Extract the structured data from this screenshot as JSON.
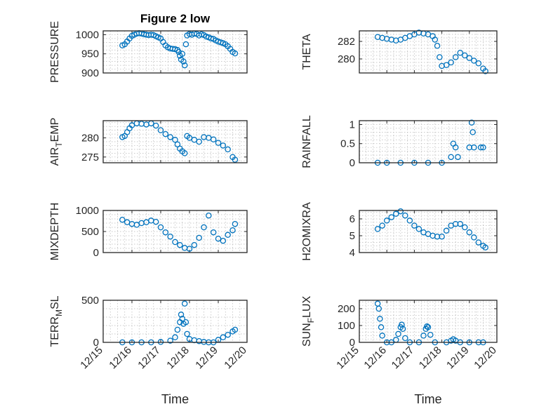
{
  "figure": {
    "title": "Figure 2 low",
    "background": "#ffffff",
    "marker_color": "#0072bd",
    "xlabel": "Time"
  },
  "chart_data": [
    {
      "type": "scatter",
      "title": "Figure 2 low",
      "ylabel": "PRESSURE",
      "ylabel_sub": "",
      "xlim": [
        "12/15",
        "12/20"
      ],
      "ylim": [
        900,
        1010
      ],
      "yticks": [
        900,
        950,
        1000
      ],
      "ytick_labels": [
        "900",
        "950",
        "1000"
      ],
      "xticks": [
        "12/15",
        "12/16",
        "12/17",
        "12/18",
        "12/19",
        "12/20"
      ],
      "show_xtick_labels": false,
      "grid": true,
      "marker": "circle",
      "points": [
        [
          "12/15 16:00",
          972
        ],
        [
          "12/15 18:00",
          975
        ],
        [
          "12/15 20:00",
          982
        ],
        [
          "12/15 22:00",
          990
        ],
        [
          "12/16 00:00",
          997
        ],
        [
          "12/16 02:00",
          1000
        ],
        [
          "12/16 04:00",
          1003
        ],
        [
          "12/16 06:00",
          1004
        ],
        [
          "12/16 08:00",
          1003
        ],
        [
          "12/16 10:00",
          1001
        ],
        [
          "12/16 12:00",
          1000
        ],
        [
          "12/16 14:00",
          999
        ],
        [
          "12/16 16:00",
          1000
        ],
        [
          "12/16 18:00",
          999
        ],
        [
          "12/16 20:00",
          996
        ],
        [
          "12/16 22:00",
          993
        ],
        [
          "12/17 00:00",
          990
        ],
        [
          "12/17 02:00",
          981
        ],
        [
          "12/17 04:00",
          972
        ],
        [
          "12/17 06:00",
          967
        ],
        [
          "12/17 08:00",
          964
        ],
        [
          "12/17 10:00",
          963
        ],
        [
          "12/17 12:00",
          962
        ],
        [
          "12/17 14:00",
          960
        ],
        [
          "12/17 15:00",
          955
        ],
        [
          "12/17 16:00",
          945
        ],
        [
          "12/17 17:00",
          935
        ],
        [
          "12/17 18:00",
          950
        ],
        [
          "12/17 19:00",
          930
        ],
        [
          "12/17 20:00",
          920
        ],
        [
          "12/17 21:00",
          975
        ],
        [
          "12/17 22:00",
          998
        ],
        [
          "12/18 00:00",
          1002
        ],
        [
          "12/18 02:00",
          1000
        ],
        [
          "12/18 04:00",
          1003
        ],
        [
          "12/18 06:00",
          1002
        ],
        [
          "12/18 08:00",
          998
        ],
        [
          "12/18 10:00",
          1001
        ],
        [
          "12/18 12:00",
          999
        ],
        [
          "12/18 14:00",
          995
        ],
        [
          "12/18 16:00",
          993
        ],
        [
          "12/18 18:00",
          990
        ],
        [
          "12/18 20:00",
          989
        ],
        [
          "12/18 22:00",
          985
        ],
        [
          "12/19 00:00",
          982
        ],
        [
          "12/19 02:00",
          980
        ],
        [
          "12/19 04:00",
          978
        ],
        [
          "12/19 06:00",
          975
        ],
        [
          "12/19 08:00",
          970
        ],
        [
          "12/19 10:00",
          963
        ],
        [
          "12/19 12:00",
          955
        ],
        [
          "12/19 14:00",
          951
        ]
      ]
    },
    {
      "type": "scatter",
      "title": "",
      "ylabel": "THETA",
      "ylabel_sub": "",
      "xlim": [
        "12/15",
        "12/20"
      ],
      "ylim": [
        278.4,
        283.2
      ],
      "yticks": [
        280,
        282
      ],
      "ytick_labels": [
        "280",
        "282"
      ],
      "xticks": [
        "12/15",
        "12/16",
        "12/17",
        "12/18",
        "12/19",
        "12/20"
      ],
      "show_xtick_labels": false,
      "grid": true,
      "marker": "circle",
      "points": [
        [
          "12/15 16:00",
          282.5
        ],
        [
          "12/15 20:00",
          282.4
        ],
        [
          "12/16 00:00",
          282.3
        ],
        [
          "12/16 04:00",
          282.2
        ],
        [
          "12/16 08:00",
          282.1
        ],
        [
          "12/16 12:00",
          282.2
        ],
        [
          "12/16 16:00",
          282.4
        ],
        [
          "12/16 20:00",
          282.6
        ],
        [
          "12/17 00:00",
          282.8
        ],
        [
          "12/17 04:00",
          283.0
        ],
        [
          "12/17 08:00",
          282.9
        ],
        [
          "12/17 12:00",
          282.8
        ],
        [
          "12/17 16:00",
          282.6
        ],
        [
          "12/17 18:00",
          282.2
        ],
        [
          "12/17 20:00",
          281.5
        ],
        [
          "12/17 22:00",
          280.2
        ],
        [
          "12/18 00:00",
          279.2
        ],
        [
          "12/18 04:00",
          279.3
        ],
        [
          "12/18 08:00",
          279.6
        ],
        [
          "12/18 12:00",
          280.2
        ],
        [
          "12/18 16:00",
          280.7
        ],
        [
          "12/18 20:00",
          280.4
        ],
        [
          "12/19 00:00",
          280.1
        ],
        [
          "12/19 04:00",
          279.8
        ],
        [
          "12/19 08:00",
          279.5
        ],
        [
          "12/19 12:00",
          278.9
        ],
        [
          "12/19 14:00",
          278.6
        ]
      ]
    },
    {
      "type": "scatter",
      "title": "",
      "ylabel": "AIR",
      "ylabel_sub": "T",
      "ylabel_rest": "EMP",
      "xlim": [
        "12/15",
        "12/20"
      ],
      "ylim": [
        273.5,
        284.5
      ],
      "yticks": [
        275,
        280
      ],
      "ytick_labels": [
        "275",
        "280"
      ],
      "xticks": [
        "12/15",
        "12/16",
        "12/17",
        "12/18",
        "12/19",
        "12/20"
      ],
      "show_xtick_labels": false,
      "grid": true,
      "marker": "circle",
      "points": [
        [
          "12/15 16:00",
          280.2
        ],
        [
          "12/15 18:00",
          280.5
        ],
        [
          "12/15 20:00",
          281.5
        ],
        [
          "12/15 22:00",
          282.5
        ],
        [
          "12/16 00:00",
          283.3
        ],
        [
          "12/16 04:00",
          283.8
        ],
        [
          "12/16 08:00",
          283.7
        ],
        [
          "12/16 12:00",
          283.5
        ],
        [
          "12/16 16:00",
          283.8
        ],
        [
          "12/16 20:00",
          283.2
        ],
        [
          "12/17 00:00",
          282.0
        ],
        [
          "12/17 04:00",
          281.0
        ],
        [
          "12/17 08:00",
          280.2
        ],
        [
          "12/17 12:00",
          279.5
        ],
        [
          "12/17 14:00",
          278.3
        ],
        [
          "12/17 16:00",
          277.2
        ],
        [
          "12/17 18:00",
          276.5
        ],
        [
          "12/17 20:00",
          276.0
        ],
        [
          "12/17 22:00",
          280.5
        ],
        [
          "12/18 00:00",
          280.0
        ],
        [
          "12/18 04:00",
          279.5
        ],
        [
          "12/18 08:00",
          279.0
        ],
        [
          "12/18 12:00",
          280.2
        ],
        [
          "12/18 16:00",
          280.0
        ],
        [
          "12/18 20:00",
          279.6
        ],
        [
          "12/19 00:00",
          278.7
        ],
        [
          "12/19 04:00",
          278.0
        ],
        [
          "12/19 08:00",
          277.0
        ],
        [
          "12/19 12:00",
          275.0
        ],
        [
          "12/19 14:00",
          274.3
        ]
      ]
    },
    {
      "type": "scatter",
      "title": "",
      "ylabel": "RAINFALL",
      "ylabel_sub": "",
      "xlim": [
        "12/15",
        "12/20"
      ],
      "ylim": [
        0,
        1.1
      ],
      "yticks": [
        0,
        0.5,
        1
      ],
      "ytick_labels": [
        "0",
        "0.5",
        "1"
      ],
      "xticks": [
        "12/15",
        "12/16",
        "12/17",
        "12/18",
        "12/19",
        "12/20"
      ],
      "show_xtick_labels": false,
      "grid": true,
      "marker": "circle",
      "points": [
        [
          "12/15 16:00",
          0
        ],
        [
          "12/16 00:00",
          0
        ],
        [
          "12/16 12:00",
          0
        ],
        [
          "12/17 00:00",
          0
        ],
        [
          "12/17 12:00",
          0
        ],
        [
          "12/18 00:00",
          0
        ],
        [
          "12/18 08:00",
          0.15
        ],
        [
          "12/18 10:00",
          0.5
        ],
        [
          "12/18 12:00",
          0.4
        ],
        [
          "12/18 14:00",
          0.15
        ],
        [
          "12/19 00:00",
          0.4
        ],
        [
          "12/19 02:00",
          1.05
        ],
        [
          "12/19 03:00",
          0.8
        ],
        [
          "12/19 04:00",
          0.4
        ],
        [
          "12/19 10:00",
          0.4
        ],
        [
          "12/19 12:00",
          0.4
        ]
      ]
    },
    {
      "type": "scatter",
      "title": "",
      "ylabel": "MIXDEPTH",
      "ylabel_sub": "",
      "xlim": [
        "12/15",
        "12/20"
      ],
      "ylim": [
        0,
        1000
      ],
      "yticks": [
        0,
        500,
        1000
      ],
      "ytick_labels": [
        "0",
        "500",
        "1000"
      ],
      "xticks": [
        "12/15",
        "12/16",
        "12/17",
        "12/18",
        "12/19",
        "12/20"
      ],
      "show_xtick_labels": false,
      "grid": true,
      "marker": "circle",
      "points": [
        [
          "12/15 16:00",
          780
        ],
        [
          "12/15 20:00",
          720
        ],
        [
          "12/16 00:00",
          680
        ],
        [
          "12/16 04:00",
          660
        ],
        [
          "12/16 08:00",
          700
        ],
        [
          "12/16 12:00",
          720
        ],
        [
          "12/16 16:00",
          760
        ],
        [
          "12/16 20:00",
          730
        ],
        [
          "12/17 00:00",
          600
        ],
        [
          "12/17 04:00",
          480
        ],
        [
          "12/17 08:00",
          380
        ],
        [
          "12/17 12:00",
          250
        ],
        [
          "12/17 16:00",
          180
        ],
        [
          "12/17 20:00",
          110
        ],
        [
          "12/18 00:00",
          90
        ],
        [
          "12/18 04:00",
          180
        ],
        [
          "12/18 08:00",
          350
        ],
        [
          "12/18 12:00",
          600
        ],
        [
          "12/18 16:00",
          880
        ],
        [
          "12/18 20:00",
          480
        ],
        [
          "12/19 00:00",
          330
        ],
        [
          "12/19 04:00",
          280
        ],
        [
          "12/19 08:00",
          420
        ],
        [
          "12/19 12:00",
          530
        ],
        [
          "12/19 14:00",
          680
        ]
      ]
    },
    {
      "type": "scatter",
      "title": "",
      "ylabel": "H2OMIXRA",
      "ylabel_sub": "",
      "xlim": [
        "12/15",
        "12/20"
      ],
      "ylim": [
        4,
        6.5
      ],
      "yticks": [
        4,
        5,
        6
      ],
      "ytick_labels": [
        "4",
        "5",
        "6"
      ],
      "xticks": [
        "12/15",
        "12/16",
        "12/17",
        "12/18",
        "12/19",
        "12/20"
      ],
      "show_xtick_labels": false,
      "grid": true,
      "marker": "circle",
      "points": [
        [
          "12/15 16:00",
          5.4
        ],
        [
          "12/15 20:00",
          5.6
        ],
        [
          "12/16 00:00",
          5.9
        ],
        [
          "12/16 04:00",
          6.1
        ],
        [
          "12/16 08:00",
          6.3
        ],
        [
          "12/16 12:00",
          6.45
        ],
        [
          "12/16 16:00",
          6.2
        ],
        [
          "12/16 20:00",
          5.9
        ],
        [
          "12/17 00:00",
          5.6
        ],
        [
          "12/17 04:00",
          5.4
        ],
        [
          "12/17 08:00",
          5.2
        ],
        [
          "12/17 12:00",
          5.1
        ],
        [
          "12/17 16:00",
          5.0
        ],
        [
          "12/17 20:00",
          4.95
        ],
        [
          "12/18 00:00",
          4.95
        ],
        [
          "12/18 04:00",
          5.3
        ],
        [
          "12/18 08:00",
          5.6
        ],
        [
          "12/18 12:00",
          5.7
        ],
        [
          "12/18 16:00",
          5.7
        ],
        [
          "12/18 20:00",
          5.5
        ],
        [
          "12/19 00:00",
          5.2
        ],
        [
          "12/19 04:00",
          4.9
        ],
        [
          "12/19 08:00",
          4.6
        ],
        [
          "12/19 12:00",
          4.4
        ],
        [
          "12/19 14:00",
          4.3
        ]
      ]
    },
    {
      "type": "scatter",
      "title": "",
      "ylabel": "TERR",
      "ylabel_sub": "M",
      "ylabel_rest": "SL",
      "xlim": [
        "12/15",
        "12/20"
      ],
      "ylim": [
        0,
        500
      ],
      "yticks": [
        0,
        500
      ],
      "ytick_labels": [
        "0",
        "500"
      ],
      "xticks": [
        "12/15",
        "12/16",
        "12/17",
        "12/18",
        "12/19",
        "12/20"
      ],
      "xtick_labels": [
        "12/15",
        "12/16",
        "12/17",
        "12/18",
        "12/19",
        "12/20"
      ],
      "show_xtick_labels": true,
      "grid": true,
      "marker": "circle",
      "xlabel": "Time",
      "points": [
        [
          "12/15 16:00",
          0
        ],
        [
          "12/16 00:00",
          0
        ],
        [
          "12/16 08:00",
          0
        ],
        [
          "12/16 16:00",
          0
        ],
        [
          "12/17 00:00",
          5
        ],
        [
          "12/17 08:00",
          20
        ],
        [
          "12/17 12:00",
          60
        ],
        [
          "12/17 14:00",
          150
        ],
        [
          "12/17 16:00",
          240
        ],
        [
          "12/17 17:00",
          330
        ],
        [
          "12/17 18:00",
          280
        ],
        [
          "12/17 19:00",
          220
        ],
        [
          "12/17 20:00",
          460
        ],
        [
          "12/17 21:00",
          240
        ],
        [
          "12/17 22:00",
          100
        ],
        [
          "12/18 00:00",
          40
        ],
        [
          "12/18 04:00",
          25
        ],
        [
          "12/18 08:00",
          15
        ],
        [
          "12/18 12:00",
          5
        ],
        [
          "12/18 16:00",
          0
        ],
        [
          "12/18 20:00",
          0
        ],
        [
          "12/19 00:00",
          30
        ],
        [
          "12/19 04:00",
          60
        ],
        [
          "12/19 08:00",
          90
        ],
        [
          "12/19 12:00",
          130
        ],
        [
          "12/19 14:00",
          150
        ]
      ]
    },
    {
      "type": "scatter",
      "title": "",
      "ylabel": "SUN",
      "ylabel_sub": "F",
      "ylabel_rest": "LUX",
      "xlim": [
        "12/15",
        "12/20"
      ],
      "ylim": [
        0,
        250
      ],
      "yticks": [
        0,
        100,
        200
      ],
      "ytick_labels": [
        "0",
        "100",
        "200"
      ],
      "xticks": [
        "12/15",
        "12/16",
        "12/17",
        "12/18",
        "12/19",
        "12/20"
      ],
      "xtick_labels": [
        "12/15",
        "12/16",
        "12/17",
        "12/18",
        "12/19",
        "12/20"
      ],
      "show_xtick_labels": true,
      "grid": true,
      "marker": "circle",
      "xlabel": "Time",
      "points": [
        [
          "12/15 16:00",
          230
        ],
        [
          "12/15 17:00",
          200
        ],
        [
          "12/15 18:00",
          140
        ],
        [
          "12/15 19:00",
          90
        ],
        [
          "12/15 20:00",
          40
        ],
        [
          "12/16 00:00",
          0
        ],
        [
          "12/16 04:00",
          0
        ],
        [
          "12/16 08:00",
          15
        ],
        [
          "12/16 10:00",
          50
        ],
        [
          "12/16 12:00",
          90
        ],
        [
          "12/16 13:00",
          105
        ],
        [
          "12/16 14:00",
          80
        ],
        [
          "12/16 16:00",
          25
        ],
        [
          "12/16 20:00",
          0
        ],
        [
          "12/17 04:00",
          0
        ],
        [
          "12/17 08:00",
          40
        ],
        [
          "12/17 10:00",
          80
        ],
        [
          "12/17 11:00",
          95
        ],
        [
          "12/17 12:00",
          90
        ],
        [
          "12/17 14:00",
          45
        ],
        [
          "12/17 18:00",
          0
        ],
        [
          "12/18 04:00",
          0
        ],
        [
          "12/18 08:00",
          10
        ],
        [
          "12/18 10:00",
          18
        ],
        [
          "12/18 12:00",
          10
        ],
        [
          "12/18 16:00",
          0
        ],
        [
          "12/19 00:00",
          0
        ],
        [
          "12/19 08:00",
          0
        ],
        [
          "12/19 12:00",
          0
        ]
      ]
    }
  ]
}
